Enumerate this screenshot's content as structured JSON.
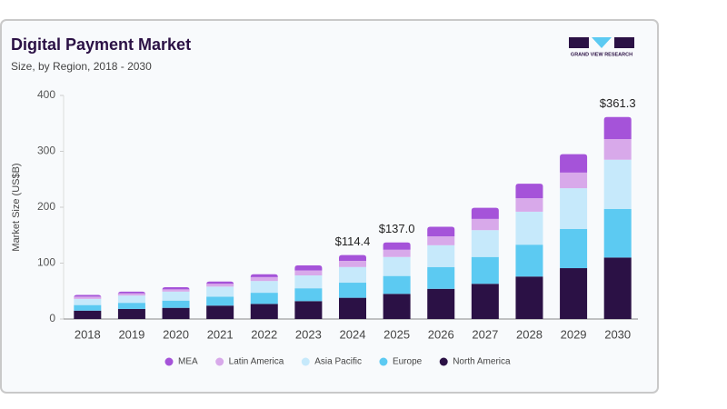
{
  "chart_data": {
    "type": "stacked-bar",
    "title": "Digital Payment Market",
    "subtitle": "Size, by Region, 2018 - 2030",
    "brand": "GRAND VIEW RESEARCH",
    "y_label": "Market Size (US$B)",
    "categories": [
      "2018",
      "2019",
      "2020",
      "2021",
      "2022",
      "2023",
      "2024",
      "2025",
      "2026",
      "2027",
      "2028",
      "2029",
      "2030"
    ],
    "series": [
      {
        "name": "North America",
        "color": "#2b1145",
        "values": [
          15,
          18,
          20,
          24,
          27,
          32,
          38,
          45,
          54,
          63,
          76,
          91,
          110
        ]
      },
      {
        "name": "Europe",
        "color": "#5ccaf2",
        "values": [
          10,
          11,
          13,
          16,
          20,
          23,
          27,
          32,
          39,
          48,
          57,
          70,
          87
        ]
      },
      {
        "name": "Asia Pacific",
        "color": "#c6e9fb",
        "values": [
          11,
          13,
          16,
          18,
          21,
          23,
          28,
          34,
          39,
          48,
          59,
          73,
          88
        ]
      },
      {
        "name": "Latin America",
        "color": "#d8a9ea",
        "values": [
          4,
          4,
          4,
          5,
          7,
          9,
          11,
          13,
          16,
          20,
          24,
          28,
          37
        ]
      },
      {
        "name": "MEA",
        "color": "#a553d9",
        "values": [
          3,
          3,
          4,
          4,
          5,
          9,
          10.4,
          13,
          17,
          20,
          26,
          33,
          39.3
        ]
      }
    ],
    "totals": {
      "values": [
        null,
        null,
        null,
        null,
        null,
        null,
        114.4,
        137.0,
        null,
        null,
        null,
        null,
        361.3
      ],
      "value_labels": [
        null,
        null,
        null,
        null,
        null,
        null,
        "$114.4",
        "$137.0",
        null,
        null,
        null,
        null,
        "$361.3"
      ]
    },
    "ylim": [
      0,
      400
    ],
    "yticks": [
      0,
      100,
      200,
      300,
      400
    ],
    "grid": false,
    "legend": "bottom"
  }
}
